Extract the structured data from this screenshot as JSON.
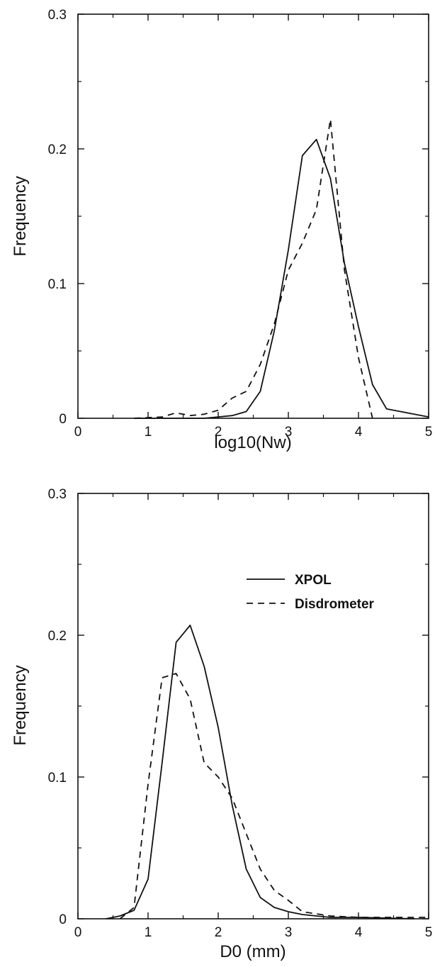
{
  "chart_data": [
    {
      "type": "line",
      "title": "",
      "xlabel": "log10(Nw)",
      "ylabel": "Frequency",
      "xlim": [
        0,
        5
      ],
      "ylim": [
        0,
        0.3
      ],
      "xticks": [
        0,
        1,
        2,
        3,
        4,
        5
      ],
      "yticks": [
        0,
        0.1,
        0.2,
        0.3
      ],
      "xtick_labels": [
        "0",
        "1",
        "2",
        "3",
        "4",
        "5"
      ],
      "ytick_labels": [
        "0",
        "0.1",
        "0.2",
        "0.3"
      ],
      "grid": false,
      "legend": null,
      "series": [
        {
          "style": "solid",
          "x": [
            0.8,
            1.0,
            1.2,
            1.4,
            1.6,
            1.8,
            2.0,
            2.2,
            2.4,
            2.6,
            2.8,
            3.0,
            3.2,
            3.4,
            3.6,
            3.8,
            4.0,
            4.2,
            4.4,
            5.0
          ],
          "y": [
            0.0,
            0.0,
            0.0,
            0.0,
            0.0,
            0.0,
            0.001,
            0.002,
            0.005,
            0.02,
            0.065,
            0.125,
            0.195,
            0.207,
            0.178,
            0.115,
            0.068,
            0.025,
            0.007,
            0.001
          ]
        },
        {
          "style": "dashed",
          "x": [
            0.8,
            1.2,
            1.4,
            1.6,
            1.8,
            2.0,
            2.2,
            2.4,
            2.6,
            2.8,
            3.0,
            3.2,
            3.4,
            3.6,
            3.8,
            4.0,
            4.2
          ],
          "y": [
            0.0,
            0.001,
            0.004,
            0.002,
            0.003,
            0.006,
            0.015,
            0.02,
            0.04,
            0.07,
            0.11,
            0.13,
            0.155,
            0.222,
            0.11,
            0.045,
            0.0
          ]
        }
      ]
    },
    {
      "type": "line",
      "title": "",
      "xlabel": "D0 (mm)",
      "ylabel": "Frequency",
      "xlim": [
        0,
        5
      ],
      "ylim": [
        0,
        0.3
      ],
      "xticks": [
        0,
        1,
        2,
        3,
        4,
        5
      ],
      "yticks": [
        0,
        0.1,
        0.2,
        0.3
      ],
      "xtick_labels": [
        "0",
        "1",
        "2",
        "3",
        "4",
        "5"
      ],
      "ytick_labels": [
        "0",
        "0.1",
        "0.2",
        "0.3"
      ],
      "grid": false,
      "legend": "top-right",
      "series": [
        {
          "name": "XPOL",
          "style": "solid",
          "x": [
            0.4,
            0.6,
            0.8,
            1.0,
            1.2,
            1.4,
            1.6,
            1.8,
            2.0,
            2.2,
            2.4,
            2.6,
            2.8,
            3.0,
            3.2,
            3.6,
            4.0,
            4.8
          ],
          "y": [
            0.0,
            0.002,
            0.006,
            0.028,
            0.11,
            0.195,
            0.207,
            0.178,
            0.135,
            0.08,
            0.035,
            0.015,
            0.008,
            0.005,
            0.003,
            0.001,
            0.001,
            0.0
          ]
        },
        {
          "name": "Disdrometer",
          "style": "dashed",
          "x": [
            0.6,
            0.8,
            1.0,
            1.2,
            1.4,
            1.6,
            1.8,
            2.0,
            2.2,
            2.4,
            2.6,
            2.8,
            3.0,
            3.2,
            3.6,
            4.0,
            5.0
          ],
          "y": [
            0.0,
            0.008,
            0.095,
            0.17,
            0.173,
            0.155,
            0.11,
            0.1,
            0.085,
            0.06,
            0.035,
            0.02,
            0.013,
            0.005,
            0.002,
            0.001,
            0.001
          ]
        }
      ]
    }
  ]
}
